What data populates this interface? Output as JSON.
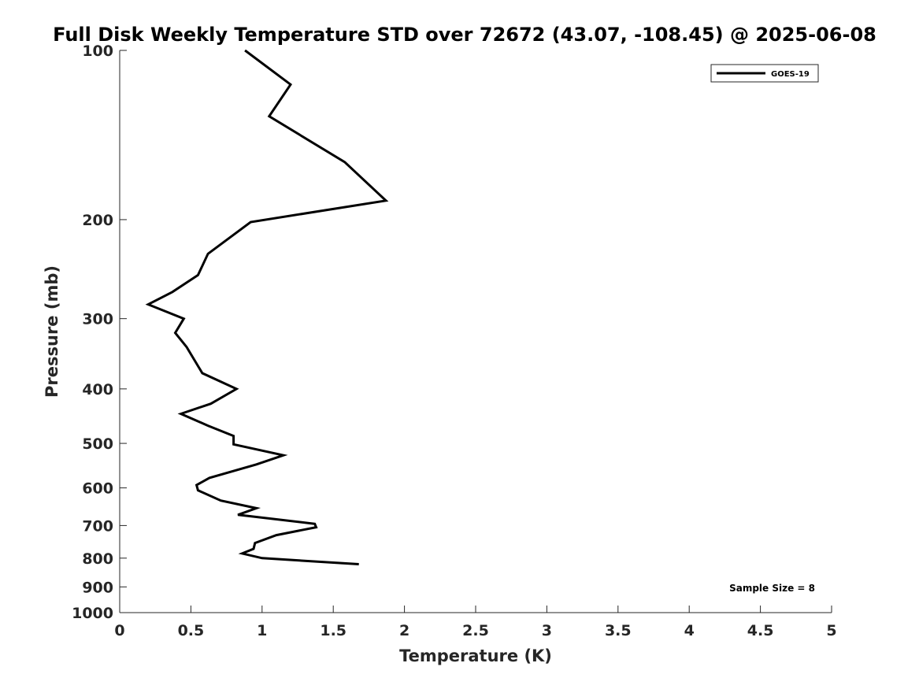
{
  "chart_data": {
    "type": "line",
    "title": "Full Disk Weekly Temperature STD over 72672 (43.07, -108.45) @ 2025-06-08",
    "xlabel": "Temperature (K)",
    "ylabel": "Pressure (mb)",
    "xlim": [
      0,
      5
    ],
    "ylim": [
      100,
      1000
    ],
    "y_scale": "log",
    "y_reversed": true,
    "x_ticks": [
      0,
      0.5,
      1,
      1.5,
      2,
      2.5,
      3,
      3.5,
      4,
      4.5,
      5
    ],
    "x_tick_labels": [
      "0",
      "0.5",
      "1",
      "1.5",
      "2",
      "2.5",
      "3",
      "3.5",
      "4",
      "4.5",
      "5"
    ],
    "y_ticks": [
      100,
      200,
      300,
      400,
      500,
      600,
      700,
      800,
      900,
      1000
    ],
    "y_tick_labels": [
      "100",
      "200",
      "300",
      "400",
      "500",
      "600",
      "700",
      "800",
      "900",
      "1000"
    ],
    "grid": false,
    "legend_position": "top-right",
    "series": [
      {
        "name": "GOES-19",
        "color": "#000000",
        "x": [
          0.88,
          1.2,
          1.05,
          1.58,
          1.87,
          0.92,
          0.62,
          0.55,
          0.37,
          0.2,
          0.45,
          0.39,
          0.47,
          0.58,
          0.82,
          0.64,
          0.43,
          0.62,
          0.8,
          0.8,
          1.15,
          0.96,
          0.63,
          0.54,
          0.55,
          0.71,
          0.96,
          0.83,
          1.37,
          1.38,
          1.1,
          0.95,
          0.94,
          0.86,
          1.0,
          1.68
        ],
        "y": [
          100,
          115,
          131,
          158,
          185,
          202,
          230,
          251,
          269,
          283,
          300,
          318,
          337,
          375,
          400,
          425,
          443,
          465,
          485,
          502,
          525,
          545,
          576,
          593,
          606,
          632,
          652,
          670,
          695,
          705,
          728,
          752,
          770,
          785,
          800,
          820
        ]
      }
    ],
    "annotations": [
      {
        "text": "Sample Size = 8",
        "position": "bottom-right"
      }
    ]
  }
}
